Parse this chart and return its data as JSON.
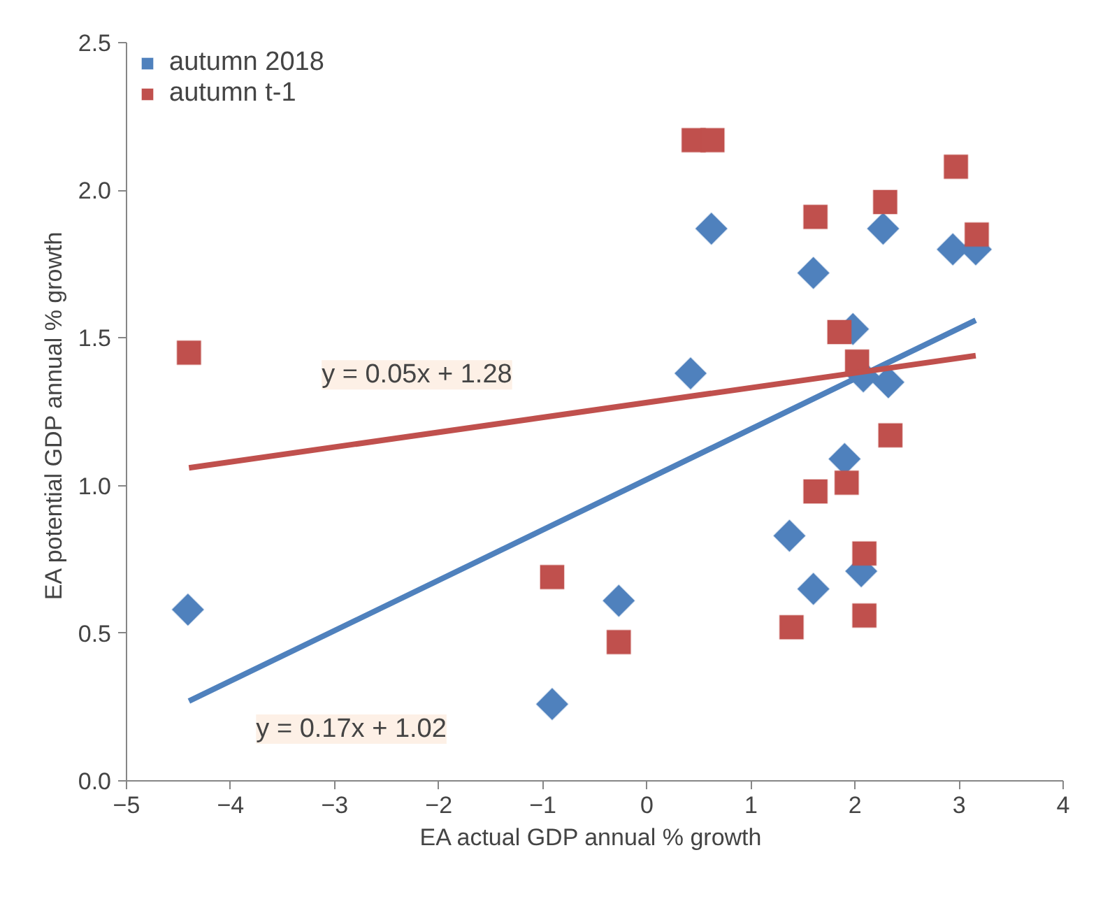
{
  "chart_data": {
    "type": "scatter",
    "xlabel": "EA actual GDP annual  % growth",
    "ylabel": "EA potential GDP annual  % growth",
    "xlim": [
      -5,
      4
    ],
    "ylim": [
      0,
      2.5
    ],
    "xticks": [
      -5,
      -4,
      -3,
      -2,
      -1,
      0,
      1,
      2,
      3,
      4
    ],
    "yticks": [
      {
        "value": 0,
        "label": "0.0"
      },
      {
        "value": 0.5,
        "label": "0.5"
      },
      {
        "value": 1,
        "label": "1.0"
      },
      {
        "value": 1.5,
        "label": "1.5"
      },
      {
        "value": 2,
        "label": "2.0"
      },
      {
        "value": 2.5,
        "label": "2.5"
      }
    ],
    "grid": false,
    "legend": "top left",
    "series": [
      {
        "name": "autumn 2018",
        "color": "#4f81bd",
        "marker": "diamond",
        "x": [
          -4.41,
          -0.91,
          -0.27,
          0.62,
          0.42,
          1.6,
          2.27,
          2.94,
          3.16,
          1.98,
          2.08,
          2.32,
          1.9,
          1.37,
          1.6,
          2.06
        ],
        "values": [
          0.58,
          0.26,
          0.61,
          1.87,
          1.38,
          1.72,
          1.87,
          1.8,
          1.8,
          1.53,
          1.37,
          1.35,
          1.09,
          0.83,
          0.65,
          0.71
        ]
      },
      {
        "name": "autumn t-1",
        "color": "#c0504d",
        "marker": "square",
        "x": [
          -4.4,
          -0.91,
          -0.27,
          0.45,
          0.63,
          1.62,
          2.29,
          2.97,
          3.17,
          1.85,
          2.02,
          2.34,
          1.62,
          1.92,
          2.09,
          1.39,
          2.09
        ],
        "values": [
          1.45,
          0.69,
          0.47,
          2.17,
          2.17,
          1.91,
          1.96,
          2.08,
          1.85,
          1.52,
          1.42,
          1.17,
          0.98,
          1.01,
          0.77,
          0.52,
          0.56
        ]
      },
      {
        "type": "line",
        "color": "#4f81bd",
        "x": [
          -4.4,
          3.16
        ],
        "values": [
          0.27,
          1.56
        ]
      },
      {
        "type": "line",
        "color": "#c0504d",
        "x": [
          -4.4,
          3.16
        ],
        "values": [
          1.06,
          1.44
        ]
      }
    ],
    "annotations": [
      "y = 0.05x + 1.28",
      "y = 0.17x + 1.02"
    ]
  }
}
